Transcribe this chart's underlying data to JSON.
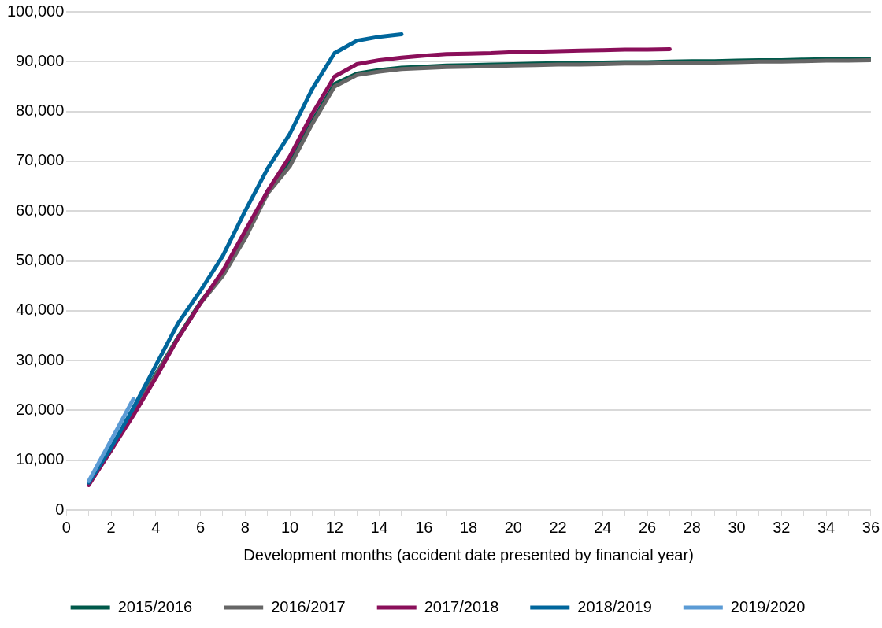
{
  "chart_data": {
    "type": "line",
    "xlabel": "Development months (accident date presented by financial year)",
    "xlim": [
      0,
      36
    ],
    "xticks": [
      0,
      {
        "value": 1,
        "label": null
      },
      2,
      {
        "value": 3,
        "label": null
      },
      4,
      {
        "value": 5,
        "label": null
      },
      6,
      {
        "value": 7,
        "label": null
      },
      8,
      {
        "value": 9,
        "label": null
      },
      10,
      {
        "value": 11,
        "label": null
      },
      12,
      {
        "value": 13,
        "label": null
      },
      14,
      {
        "value": 15,
        "label": null
      },
      16,
      {
        "value": 17,
        "label": null
      },
      18,
      {
        "value": 19,
        "label": null
      },
      20,
      {
        "value": 21,
        "label": null
      },
      22,
      {
        "value": 23,
        "label": null
      },
      24,
      {
        "value": 25,
        "label": null
      },
      26,
      {
        "value": 27,
        "label": null
      },
      28,
      {
        "value": 29,
        "label": null
      },
      30,
      {
        "value": 31,
        "label": null
      },
      32,
      {
        "value": 33,
        "label": null
      },
      34,
      {
        "value": 35,
        "label": null
      },
      36
    ],
    "ylim": [
      0,
      100000
    ],
    "yticks": [
      0,
      {
        "value": 10000,
        "label": "10,000"
      },
      {
        "value": 20000,
        "label": "20,000"
      },
      {
        "value": 30000,
        "label": "30,000"
      },
      {
        "value": 40000,
        "label": "40,000"
      },
      {
        "value": 50000,
        "label": "50,000"
      },
      {
        "value": 60000,
        "label": "60,000"
      },
      {
        "value": 70000,
        "label": "70,000"
      },
      {
        "value": 80000,
        "label": "80,000"
      },
      {
        "value": 90000,
        "label": "90,000"
      },
      {
        "value": 100000,
        "label": "100,000"
      }
    ],
    "x": [
      1,
      2,
      3,
      4,
      5,
      6,
      7,
      8,
      9,
      10,
      11,
      12,
      13,
      14,
      15,
      16,
      17,
      18,
      19,
      20,
      21,
      22,
      23,
      24,
      25,
      26,
      27,
      28,
      29,
      30,
      31,
      32,
      33,
      34,
      35,
      36
    ],
    "grid": "y",
    "legend": "bottom",
    "marker": "none",
    "line_style": "solid",
    "series": [
      {
        "name": "2015/2016",
        "color": "#00594a",
        "values": [
          5300,
          12200,
          19700,
          27200,
          34700,
          41700,
          47500,
          55000,
          64000,
          69800,
          78000,
          85500,
          87600,
          88300,
          88800,
          89000,
          89200,
          89300,
          89400,
          89500,
          89600,
          89700,
          89700,
          89800,
          89900,
          89900,
          90000,
          90100,
          90100,
          90200,
          90300,
          90300,
          90400,
          90500,
          90500,
          90600
        ]
      },
      {
        "name": "2016/2017",
        "color": "#666666",
        "values": [
          5200,
          12000,
          19500,
          27000,
          34500,
          41500,
          47000,
          54500,
          63500,
          69000,
          77500,
          85000,
          87300,
          88000,
          88500,
          88700,
          88900,
          89000,
          89100,
          89200,
          89300,
          89400,
          89400,
          89500,
          89600,
          89600,
          89700,
          89800,
          89800,
          89900,
          90000,
          90000,
          90100,
          90200,
          90200,
          90300
        ]
      },
      {
        "name": "2017/2018",
        "color": "#8a0f5a",
        "values": [
          5000,
          12000,
          19000,
          26500,
          34500,
          41500,
          48000,
          56000,
          64000,
          71000,
          79500,
          87000,
          89500,
          90300,
          90800,
          91200,
          91500,
          91600,
          91700,
          91900,
          92000,
          92100,
          92200,
          92300,
          92400,
          92400,
          92500,
          null,
          null,
          null,
          null,
          null,
          null,
          null,
          null,
          null
        ]
      },
      {
        "name": "2018/2019",
        "color": "#00669c",
        "values": [
          5500,
          12500,
          20500,
          29000,
          37500,
          44000,
          51000,
          60000,
          68500,
          75500,
          84500,
          91700,
          94200,
          95000,
          95500,
          null,
          null,
          null,
          null,
          null,
          null,
          null,
          null,
          null,
          null,
          null,
          null,
          null,
          null,
          null,
          null,
          null,
          null,
          null,
          null,
          null
        ]
      },
      {
        "name": "2019/2020",
        "color": "#5b9bd5",
        "values": [
          5800,
          14000,
          22300,
          null,
          null,
          null,
          null,
          null,
          null,
          null,
          null,
          null,
          null,
          null,
          null,
          null,
          null,
          null,
          null,
          null,
          null,
          null,
          null,
          null,
          null,
          null,
          null,
          null,
          null,
          null,
          null,
          null,
          null,
          null,
          null,
          null
        ]
      }
    ]
  }
}
